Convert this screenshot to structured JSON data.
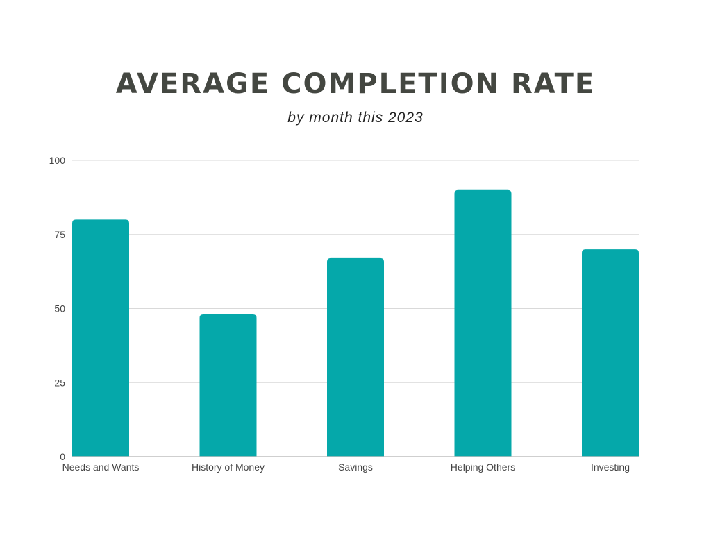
{
  "chart_data": {
    "type": "bar",
    "title": "AVERAGE COMPLETION RATE",
    "subtitle": "by month this 2023",
    "categories": [
      "Needs and Wants",
      "History of Money",
      "Savings",
      "Helping Others",
      "Investing"
    ],
    "values": [
      80,
      48,
      67,
      90,
      70
    ],
    "xlabel": "",
    "ylabel": "",
    "ylim": [
      0,
      100
    ],
    "yticks": [
      0,
      25,
      50,
      75,
      100
    ],
    "grid": true,
    "legend": "none",
    "bar_color": "#05a8aa",
    "grid_color": "#d9d9d9",
    "axis_color": "#bfbfbf"
  }
}
